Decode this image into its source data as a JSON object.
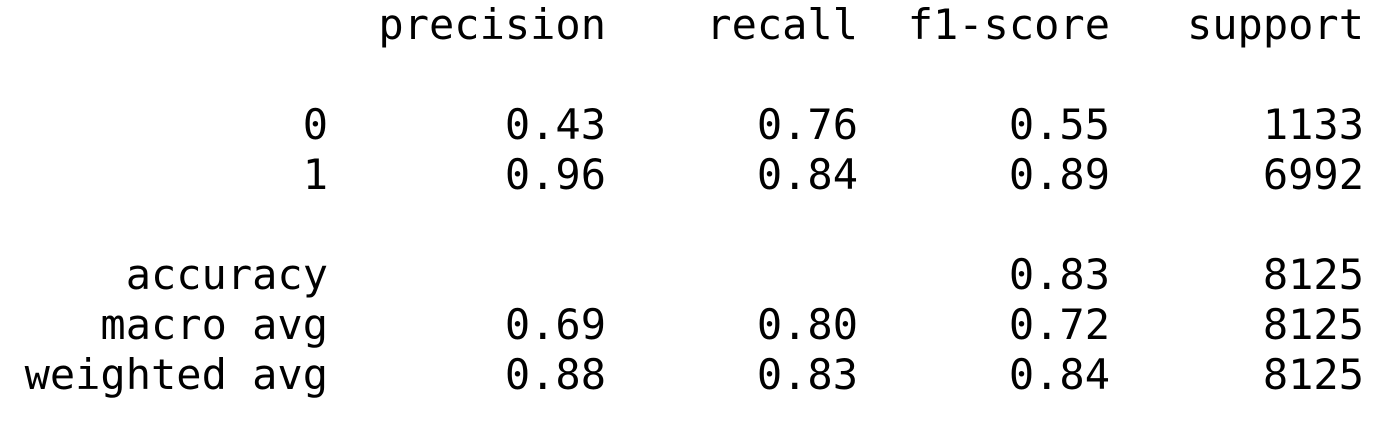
{
  "header": {
    "precision": "precision",
    "recall": "recall",
    "f1_score": "f1-score",
    "support": "support"
  },
  "classes": [
    {
      "label": "0",
      "precision": "0.43",
      "recall": "0.76",
      "f1_score": "0.55",
      "support": "1133"
    },
    {
      "label": "1",
      "precision": "0.96",
      "recall": "0.84",
      "f1_score": "0.89",
      "support": "6992"
    }
  ],
  "accuracy": {
    "label": "accuracy",
    "f1_score": "0.83",
    "support": "8125"
  },
  "macro_avg": {
    "label": "macro avg",
    "precision": "0.69",
    "recall": "0.80",
    "f1_score": "0.72",
    "support": "8125"
  },
  "weighted_avg": {
    "label": "weighted avg",
    "precision": "0.88",
    "recall": "0.83",
    "f1_score": "0.84",
    "support": "8125"
  }
}
